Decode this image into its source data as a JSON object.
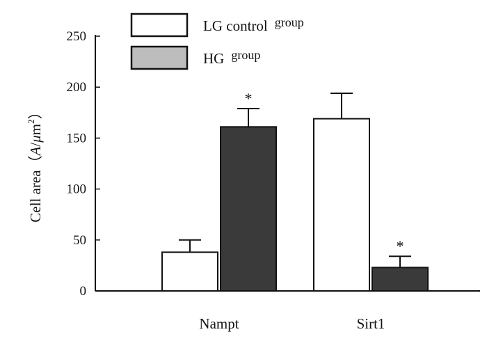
{
  "chart_data": {
    "type": "bar",
    "title": "",
    "xlabel": "",
    "ylabel": {
      "prefix": "Cell area（",
      "var": "A",
      "slash": "/",
      "unit_italic": "μ",
      "unit_rest": "m",
      "exponent": "2",
      "suffix": "）"
    },
    "ylim": [
      0,
      250
    ],
    "yticks": [
      0,
      50,
      100,
      150,
      200,
      250
    ],
    "categories": [
      "Nampt",
      "Sirt1"
    ],
    "series": [
      {
        "name": "LG control group",
        "legend_main": "LG control",
        "legend_small": "group",
        "color": "#ffffff",
        "values": [
          38,
          169
        ],
        "errors": [
          12,
          25
        ],
        "sig": [
          "",
          ""
        ]
      },
      {
        "name": "HG group",
        "legend_main": "HG",
        "legend_small": "group",
        "color": "#3a3a3a",
        "legend_color": "#bdbdbd",
        "values": [
          161,
          23
        ],
        "errors": [
          18,
          11
        ],
        "sig": [
          "*",
          "*"
        ]
      }
    ],
    "legend_position": "top-center"
  }
}
